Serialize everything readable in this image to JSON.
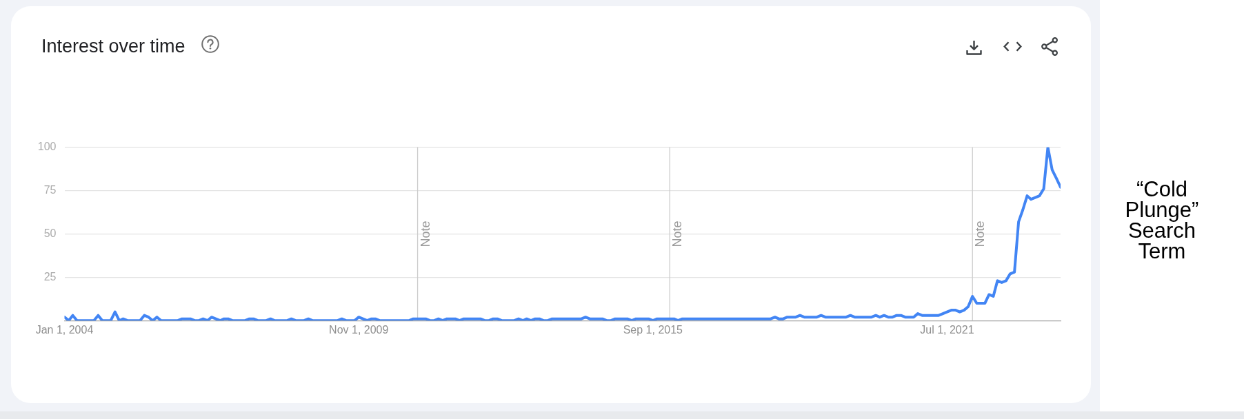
{
  "chart_data": {
    "type": "line",
    "title": "Interest over time",
    "x": [
      "2004-01",
      "2004-02",
      "2004-03",
      "2004-04",
      "2004-05",
      "2004-06",
      "2004-07",
      "2004-08",
      "2004-09",
      "2004-10",
      "2004-11",
      "2004-12",
      "2005-01",
      "2005-02",
      "2005-03",
      "2005-04",
      "2005-05",
      "2005-06",
      "2005-07",
      "2005-08",
      "2005-09",
      "2005-10",
      "2005-11",
      "2005-12",
      "2006-01",
      "2006-02",
      "2006-03",
      "2006-04",
      "2006-05",
      "2006-06",
      "2006-07",
      "2006-08",
      "2006-09",
      "2006-10",
      "2006-11",
      "2006-12",
      "2007-01",
      "2007-02",
      "2007-03",
      "2007-04",
      "2007-05",
      "2007-06",
      "2007-07",
      "2007-08",
      "2007-09",
      "2007-10",
      "2007-11",
      "2007-12",
      "2008-01",
      "2008-02",
      "2008-03",
      "2008-04",
      "2008-05",
      "2008-06",
      "2008-07",
      "2008-08",
      "2008-09",
      "2008-10",
      "2008-11",
      "2008-12",
      "2009-01",
      "2009-02",
      "2009-03",
      "2009-04",
      "2009-05",
      "2009-06",
      "2009-07",
      "2009-08",
      "2009-09",
      "2009-10",
      "2009-11",
      "2009-12",
      "2010-01",
      "2010-02",
      "2010-03",
      "2010-04",
      "2010-05",
      "2010-06",
      "2010-07",
      "2010-08",
      "2010-09",
      "2010-10",
      "2010-11",
      "2010-12",
      "2011-01",
      "2011-02",
      "2011-03",
      "2011-04",
      "2011-05",
      "2011-06",
      "2011-07",
      "2011-08",
      "2011-09",
      "2011-10",
      "2011-11",
      "2011-12",
      "2012-01",
      "2012-02",
      "2012-03",
      "2012-04",
      "2012-05",
      "2012-06",
      "2012-07",
      "2012-08",
      "2012-09",
      "2012-10",
      "2012-11",
      "2012-12",
      "2013-01",
      "2013-02",
      "2013-03",
      "2013-04",
      "2013-05",
      "2013-06",
      "2013-07",
      "2013-08",
      "2013-09",
      "2013-10",
      "2013-11",
      "2013-12",
      "2014-01",
      "2014-02",
      "2014-03",
      "2014-04",
      "2014-05",
      "2014-06",
      "2014-07",
      "2014-08",
      "2014-09",
      "2014-10",
      "2014-11",
      "2014-12",
      "2015-01",
      "2015-02",
      "2015-03",
      "2015-04",
      "2015-05",
      "2015-06",
      "2015-07",
      "2015-08",
      "2015-09",
      "2015-10",
      "2015-11",
      "2015-12",
      "2016-01",
      "2016-02",
      "2016-03",
      "2016-04",
      "2016-05",
      "2016-06",
      "2016-07",
      "2016-08",
      "2016-09",
      "2016-10",
      "2016-11",
      "2016-12",
      "2017-01",
      "2017-02",
      "2017-03",
      "2017-04",
      "2017-05",
      "2017-06",
      "2017-07",
      "2017-08",
      "2017-09",
      "2017-10",
      "2017-11",
      "2017-12",
      "2018-01",
      "2018-02",
      "2018-03",
      "2018-04",
      "2018-05",
      "2018-06",
      "2018-07",
      "2018-08",
      "2018-09",
      "2018-10",
      "2018-11",
      "2018-12",
      "2019-01",
      "2019-02",
      "2019-03",
      "2019-04",
      "2019-05",
      "2019-06",
      "2019-07",
      "2019-08",
      "2019-09",
      "2019-10",
      "2019-11",
      "2019-12",
      "2020-01",
      "2020-02",
      "2020-03",
      "2020-04",
      "2020-05",
      "2020-06",
      "2020-07",
      "2020-08",
      "2020-09",
      "2020-10",
      "2020-11",
      "2020-12",
      "2021-01",
      "2021-02",
      "2021-03",
      "2021-04",
      "2021-05",
      "2021-06",
      "2021-07",
      "2021-08",
      "2021-09",
      "2021-10",
      "2021-11",
      "2021-12",
      "2022-01",
      "2022-02",
      "2022-03",
      "2022-04",
      "2022-05",
      "2022-06",
      "2022-07",
      "2022-08",
      "2022-09",
      "2022-10",
      "2022-11",
      "2022-12",
      "2023-01",
      "2023-02",
      "2023-03",
      "2023-04",
      "2023-05",
      "2023-06",
      "2023-07",
      "2023-08",
      "2023-09",
      "2023-10"
    ],
    "series": [
      {
        "color": "#4285f4",
        "values": [
          2,
          0,
          3,
          0,
          0,
          0,
          0,
          0,
          3,
          0,
          0,
          0,
          5,
          0,
          1,
          0,
          0,
          0,
          0,
          3,
          2,
          0,
          2,
          0,
          0,
          0,
          0,
          0,
          1,
          1,
          1,
          0,
          0,
          1,
          0,
          2,
          1,
          0,
          1,
          1,
          0,
          0,
          0,
          0,
          1,
          1,
          0,
          0,
          0,
          1,
          0,
          0,
          0,
          0,
          1,
          0,
          0,
          0,
          1,
          0,
          0,
          0,
          0,
          0,
          0,
          0,
          1,
          0,
          0,
          0,
          2,
          1,
          0,
          1,
          1,
          0,
          0,
          0,
          0,
          0,
          0,
          0,
          0,
          1,
          1,
          1,
          1,
          0,
          0,
          1,
          0,
          1,
          1,
          1,
          0,
          1,
          1,
          1,
          1,
          1,
          0,
          0,
          1,
          1,
          0,
          0,
          0,
          0,
          1,
          0,
          1,
          0,
          1,
          1,
          0,
          0,
          1,
          1,
          1,
          1,
          1,
          1,
          1,
          1,
          2,
          1,
          1,
          1,
          1,
          0,
          0,
          1,
          1,
          1,
          1,
          0,
          1,
          1,
          1,
          1,
          0,
          1,
          1,
          1,
          1,
          1,
          0,
          1,
          1,
          1,
          1,
          1,
          1,
          1,
          1,
          1,
          1,
          1,
          1,
          1,
          1,
          1,
          1,
          1,
          1,
          1,
          1,
          1,
          1,
          2,
          1,
          1,
          2,
          2,
          2,
          3,
          2,
          2,
          2,
          2,
          3,
          2,
          2,
          2,
          2,
          2,
          2,
          3,
          2,
          2,
          2,
          2,
          2,
          3,
          2,
          3,
          2,
          2,
          3,
          3,
          2,
          2,
          2,
          4,
          3,
          3,
          3,
          3,
          3,
          4,
          5,
          6,
          6,
          5,
          6,
          8,
          14,
          10,
          10,
          10,
          15,
          14,
          23,
          22,
          23,
          27,
          28,
          57,
          64,
          72,
          70,
          71,
          72,
          76,
          100,
          87,
          82,
          77
        ]
      }
    ],
    "xlim": [
      "2004-01",
      "2023-10"
    ],
    "xticks": [
      {
        "value": "2004-01-01",
        "label": "Jan 1, 2004"
      },
      {
        "value": "2009-11-01",
        "label": "Nov 1, 2009"
      },
      {
        "value": "2015-09-01",
        "label": "Sep 1, 2015"
      },
      {
        "value": "2021-07-01",
        "label": "Jul 1, 2021"
      }
    ],
    "ylim": [
      0,
      100
    ],
    "yticks": [
      25,
      50,
      75,
      100
    ],
    "grid": "y",
    "marker": "none",
    "line_style": "solid",
    "ref_lines": [
      {
        "axis": "x",
        "value": "2011-01-01",
        "label": "Note",
        "color": "#cccccc"
      },
      {
        "axis": "x",
        "value": "2016-01-01",
        "label": "Note",
        "color": "#cccccc"
      },
      {
        "axis": "x",
        "value": "2022-01-01",
        "label": "Note",
        "color": "#cccccc"
      }
    ],
    "annotations": [
      "“Cold Plunge” Search Term"
    ]
  }
}
